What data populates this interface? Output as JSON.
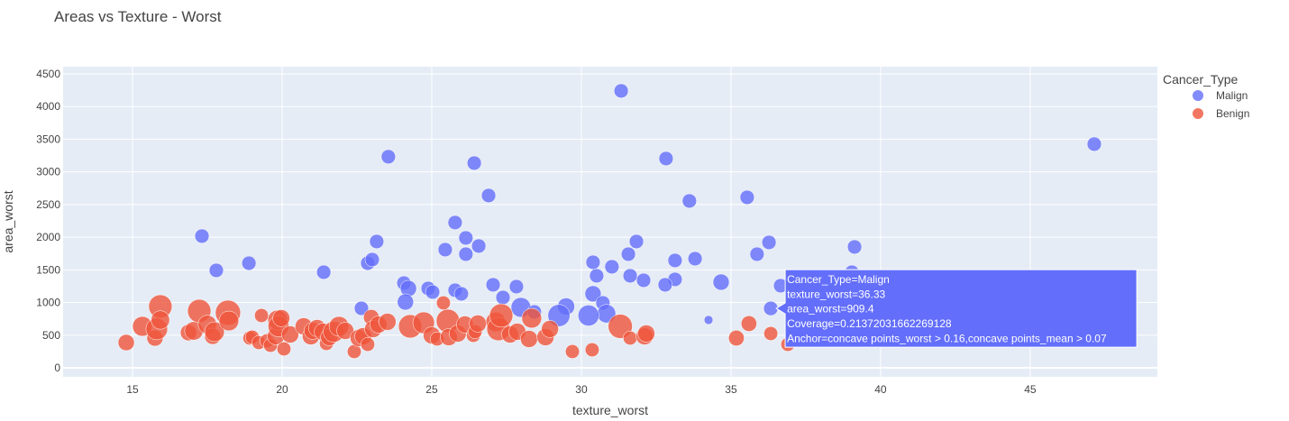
{
  "chart_data": {
    "type": "scatter",
    "title": "Areas vs Texture - Worst",
    "xlabel": "texture_worst",
    "ylabel": "area_worst",
    "xlim": [
      12.68,
      49.25
    ],
    "ylim": [
      -138,
      4610
    ],
    "xticks": [
      15,
      20,
      25,
      30,
      35,
      40,
      45
    ],
    "yticks": [
      0,
      500,
      1000,
      1500,
      2000,
      2500,
      3000,
      3500,
      4000,
      4500
    ],
    "grid": true,
    "legend": {
      "title": "Cancer_Type",
      "placement": "top-right"
    },
    "size_field": "Coverage",
    "series": [
      {
        "name": "Malign",
        "color": "#636efa",
        "points": [
          [
            47.14,
            3425,
            0.21
          ],
          [
            31.33,
            4240,
            0.21
          ],
          [
            32.83,
            3204,
            0.21
          ],
          [
            23.55,
            3232,
            0.21
          ],
          [
            26.42,
            3135,
            0.21
          ],
          [
            26.9,
            2638,
            0.21
          ],
          [
            35.54,
            2610,
            0.21
          ],
          [
            33.61,
            2555,
            0.21
          ],
          [
            17.32,
            2017,
            0.21
          ],
          [
            25.78,
            2224,
            0.21
          ],
          [
            17.8,
            1492,
            0.21
          ],
          [
            18.89,
            1602,
            0.21
          ],
          [
            21.39,
            1464,
            0.21
          ],
          [
            23.16,
            1934,
            0.21
          ],
          [
            22.86,
            1602,
            0.21
          ],
          [
            23.01,
            1657,
            0.21
          ],
          [
            25.45,
            1809,
            0.21
          ],
          [
            26.14,
            1989,
            0.21
          ],
          [
            26.57,
            1865,
            0.21
          ],
          [
            26.14,
            1740,
            0.21
          ],
          [
            30.39,
            1616,
            0.21
          ],
          [
            31.02,
            1547,
            0.21
          ],
          [
            31.57,
            1740,
            0.21
          ],
          [
            31.84,
            1934,
            0.21
          ],
          [
            31.63,
            1409,
            0.21
          ],
          [
            32.08,
            1340,
            0.21
          ],
          [
            33.13,
            1644,
            0.21
          ],
          [
            33.8,
            1671,
            0.21
          ],
          [
            33.13,
            1354,
            0.21
          ],
          [
            35.87,
            1740,
            0.21
          ],
          [
            36.27,
            1920,
            0.21
          ],
          [
            39.13,
            1851,
            0.21
          ],
          [
            34.67,
            1312,
            0.27
          ],
          [
            32.8,
            1271,
            0.21
          ],
          [
            36.66,
            1257,
            0.21
          ],
          [
            39.04,
            1464,
            0.21
          ],
          [
            24.07,
            1298,
            0.21
          ],
          [
            24.22,
            1215,
            0.27
          ],
          [
            24.88,
            1215,
            0.21
          ],
          [
            25.03,
            1160,
            0.21
          ],
          [
            25.78,
            1188,
            0.21
          ],
          [
            25.99,
            1133,
            0.21
          ],
          [
            27.05,
            1271,
            0.21
          ],
          [
            27.38,
            1077,
            0.21
          ],
          [
            27.83,
            1243,
            0.21
          ],
          [
            27.98,
            925,
            0.4
          ],
          [
            30.39,
            1133,
            0.27
          ],
          [
            30.51,
            1409,
            0.21
          ],
          [
            30.72,
            994,
            0.21
          ],
          [
            30.84,
            829,
            0.35
          ],
          [
            29.49,
            939,
            0.3
          ],
          [
            30.24,
            801,
            0.45
          ],
          [
            28.43,
            856,
            0.21
          ],
          [
            22.65,
            911,
            0.21
          ],
          [
            36.33,
            909.4,
            0.21372031662269128
          ],
          [
            34.25,
            732,
            0.08
          ],
          [
            29.25,
            801,
            0.5
          ],
          [
            24.12,
            1008,
            0.27
          ]
        ]
      },
      {
        "name": "Benign",
        "color": "#EF553B",
        "points": [
          [
            14.79,
            387,
            0.27
          ],
          [
            15.33,
            635,
            0.4
          ],
          [
            15.75,
            456,
            0.27
          ],
          [
            15.81,
            594,
            0.48
          ],
          [
            15.93,
            939,
            0.56
          ],
          [
            15.93,
            732,
            0.35
          ],
          [
            16.87,
            539,
            0.27
          ],
          [
            17.05,
            566,
            0.35
          ],
          [
            17.23,
            870,
            0.56
          ],
          [
            17.5,
            663,
            0.35
          ],
          [
            17.68,
            483,
            0.27
          ],
          [
            17.74,
            552,
            0.4
          ],
          [
            18.19,
            843,
            0.65
          ],
          [
            18.22,
            718,
            0.4
          ],
          [
            18.92,
            456,
            0.2
          ],
          [
            19.0,
            470,
            0.2
          ],
          [
            19.22,
            387,
            0.2
          ],
          [
            19.31,
            801,
            0.2
          ],
          [
            19.49,
            414,
            0.2
          ],
          [
            19.61,
            345,
            0.2
          ],
          [
            19.79,
            483,
            0.3
          ],
          [
            19.85,
            732,
            0.4
          ],
          [
            19.88,
            635,
            0.45
          ],
          [
            19.97,
            760,
            0.3
          ],
          [
            20.06,
            290,
            0.2
          ],
          [
            20.27,
            511,
            0.3
          ],
          [
            20.72,
            635,
            0.3
          ],
          [
            20.96,
            483,
            0.3
          ],
          [
            21.02,
            566,
            0.3
          ],
          [
            21.17,
            608,
            0.3
          ],
          [
            21.36,
            552,
            0.3
          ],
          [
            21.48,
            373,
            0.2
          ],
          [
            21.57,
            470,
            0.3
          ],
          [
            21.72,
            552,
            0.45
          ],
          [
            21.9,
            635,
            0.4
          ],
          [
            22.11,
            566,
            0.3
          ],
          [
            22.41,
            249,
            0.2
          ],
          [
            22.56,
            456,
            0.3
          ],
          [
            22.71,
            483,
            0.3
          ],
          [
            22.86,
            359,
            0.2
          ],
          [
            22.98,
            773,
            0.25
          ],
          [
            23.04,
            594,
            0.3
          ],
          [
            23.22,
            663,
            0.3
          ],
          [
            23.52,
            704,
            0.3
          ],
          [
            24.28,
            635,
            0.56
          ],
          [
            24.73,
            690,
            0.48
          ],
          [
            25.0,
            497,
            0.3
          ],
          [
            25.18,
            442,
            0.2
          ],
          [
            25.39,
            994,
            0.2
          ],
          [
            25.54,
            718,
            0.56
          ],
          [
            25.57,
            470,
            0.3
          ],
          [
            25.87,
            525,
            0.3
          ],
          [
            26.11,
            663,
            0.3
          ],
          [
            26.39,
            497,
            0.2
          ],
          [
            26.45,
            552,
            0.2
          ],
          [
            26.54,
            677,
            0.3
          ],
          [
            27.14,
            704,
            0.4
          ],
          [
            27.23,
            594,
            0.56
          ],
          [
            27.32,
            801,
            0.56
          ],
          [
            27.62,
            511,
            0.3
          ],
          [
            27.86,
            552,
            0.3
          ],
          [
            28.25,
            442,
            0.3
          ],
          [
            28.34,
            760,
            0.4
          ],
          [
            28.8,
            470,
            0.3
          ],
          [
            28.95,
            594,
            0.3
          ],
          [
            29.7,
            249,
            0.2
          ],
          [
            30.36,
            276,
            0.2
          ],
          [
            31.3,
            635,
            0.6
          ],
          [
            31.63,
            456,
            0.2
          ],
          [
            32.11,
            483,
            0.3
          ],
          [
            32.17,
            525,
            0.3
          ],
          [
            35.18,
            456,
            0.25
          ],
          [
            35.6,
            677,
            0.25
          ],
          [
            36.33,
            525,
            0.2
          ],
          [
            36.9,
            359,
            0.2
          ]
        ]
      }
    ],
    "tooltip": {
      "lines": [
        "Cancer_Type=Malign",
        "texture_worst=36.33",
        "area_worst=909.4",
        "Coverage=0.21372031662269128",
        "Anchor=concave points_worst > 0.16,concave points_mean > 0.07"
      ],
      "color": "#636efa",
      "point": [
        36.33,
        909.4
      ]
    }
  }
}
